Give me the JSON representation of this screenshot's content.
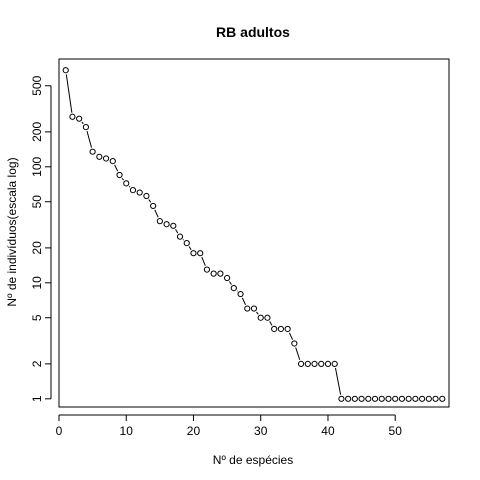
{
  "chart_data": {
    "type": "scatter",
    "title": "RB adultos",
    "xlabel": "Nº de espécies",
    "ylabel": "Nº de indivíduos(escala log)",
    "x_scale": "linear",
    "y_scale": "log",
    "xlim": [
      0,
      58
    ],
    "ylim": [
      0.85,
      850
    ],
    "x_ticks": [
      0,
      10,
      20,
      30,
      40,
      50
    ],
    "x_tick_labels": [
      "0",
      "10",
      "20",
      "30",
      "40",
      "50"
    ],
    "y_ticks": [
      1,
      2,
      5,
      10,
      20,
      50,
      100,
      200,
      500
    ],
    "y_tick_labels": [
      "1",
      "2",
      "5",
      "10",
      "20",
      "50",
      "100",
      "200",
      "500"
    ],
    "grid": false,
    "series": [
      {
        "x": [
          1,
          2,
          3,
          4,
          5,
          6,
          7,
          8,
          9,
          10,
          11,
          12,
          13,
          14,
          15,
          16,
          17,
          18,
          19,
          20,
          21,
          22,
          23,
          24,
          25,
          26,
          27,
          28,
          29,
          30,
          31,
          32,
          33,
          34,
          35,
          36,
          37,
          38,
          39,
          40,
          41,
          42,
          43,
          44,
          45,
          46,
          47,
          48,
          49,
          50,
          51,
          52,
          53,
          54,
          55,
          56,
          57
        ],
        "values": [
          680,
          270,
          260,
          220,
          135,
          122,
          118,
          112,
          85,
          72,
          63,
          60,
          56,
          46,
          34,
          32,
          31,
          25,
          22,
          18,
          18,
          13,
          12,
          12,
          11,
          9,
          8,
          6,
          6,
          5,
          5,
          4,
          4,
          4,
          3,
          2,
          2,
          2,
          2,
          2,
          2,
          1,
          1,
          1,
          1,
          1,
          1,
          1,
          1,
          1,
          1,
          1,
          1,
          1,
          1,
          1,
          1
        ]
      }
    ]
  }
}
